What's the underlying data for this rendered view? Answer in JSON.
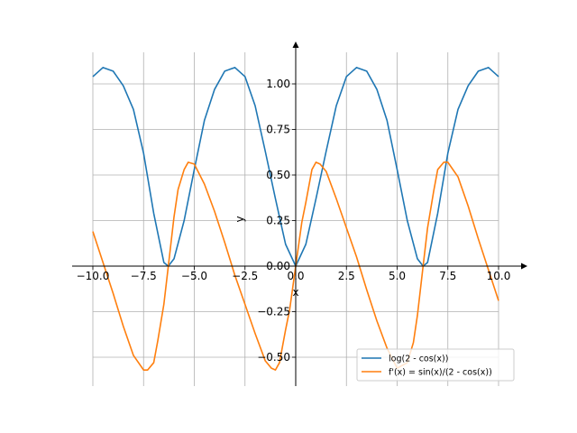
{
  "chart_data": {
    "type": "line",
    "xlabel": "x",
    "ylabel": "y",
    "xlim": [
      -10,
      10
    ],
    "ylim": [
      -0.6,
      1.1
    ],
    "grid": true,
    "legend_position": "lower-right",
    "x_ticks": [
      -10.0,
      -7.5,
      -5.0,
      -2.5,
      0.0,
      2.5,
      5.0,
      7.5,
      10.0
    ],
    "x_tick_labels": [
      "−10.0",
      "−7.5",
      "−5.0",
      "−2.5",
      "0.0",
      "2.5",
      "5.0",
      "7.5",
      "10.0"
    ],
    "y_ticks": [
      -0.5,
      -0.25,
      0.0,
      0.25,
      0.5,
      0.75,
      1.0
    ],
    "y_tick_labels": [
      "−0.50",
      "−0.25",
      "0.00",
      "0.25",
      "0.50",
      "0.75",
      "1.00"
    ],
    "series": [
      {
        "name": "log(2 - cos(x))",
        "color": "#1f77b4",
        "x": [
          -10,
          -9.5,
          -9,
          -8.5,
          -8,
          -7.5,
          -7,
          -6.5,
          -6.28,
          -6,
          -5.5,
          -5,
          -4.5,
          -4,
          -3.5,
          -3,
          -2.5,
          -2,
          -1.5,
          -1,
          -0.5,
          0,
          0.5,
          1,
          1.5,
          2,
          2.5,
          3,
          3.5,
          4,
          4.5,
          5,
          5.5,
          6,
          6.28,
          6.5,
          7,
          7.5,
          8,
          8.5,
          9,
          9.5,
          10
        ],
        "y": [
          1.04,
          1.09,
          1.07,
          0.99,
          0.86,
          0.62,
          0.29,
          0.02,
          0.0,
          0.04,
          0.25,
          0.53,
          0.8,
          0.97,
          1.07,
          1.09,
          1.04,
          0.88,
          0.63,
          0.37,
          0.12,
          0.0,
          0.12,
          0.37,
          0.63,
          0.88,
          1.04,
          1.09,
          1.07,
          0.97,
          0.8,
          0.53,
          0.25,
          0.04,
          0.0,
          0.02,
          0.29,
          0.62,
          0.86,
          0.99,
          1.07,
          1.09,
          1.04
        ]
      },
      {
        "name": "f'(x) = sin(x)/(2 - cos(x))",
        "color": "#ff7f0e",
        "x": [
          -10,
          -9.5,
          -9,
          -8.5,
          -8,
          -7.5,
          -7.3,
          -7,
          -6.8,
          -6.5,
          -6.28,
          -6,
          -5.8,
          -5.5,
          -5.3,
          -5,
          -4.5,
          -4,
          -3.5,
          -3,
          -2.5,
          -2,
          -1.5,
          -1.2,
          -1,
          -0.8,
          -0.5,
          -0.3,
          0,
          0.3,
          0.5,
          0.8,
          1,
          1.2,
          1.5,
          2,
          2.5,
          3,
          3.5,
          4,
          4.5,
          5,
          5.5,
          5.8,
          6,
          6.28,
          6.5,
          6.8,
          7,
          7.3,
          7.5,
          8,
          8.5,
          9,
          9.5,
          10
        ],
        "y": [
          0.19,
          0.02,
          -0.15,
          -0.33,
          -0.49,
          -0.57,
          -0.57,
          -0.53,
          -0.41,
          -0.21,
          0.0,
          0.27,
          0.42,
          0.53,
          0.57,
          0.56,
          0.45,
          0.3,
          0.13,
          -0.05,
          -0.21,
          -0.37,
          -0.52,
          -0.56,
          -0.57,
          -0.53,
          -0.35,
          -0.24,
          0.0,
          0.24,
          0.35,
          0.53,
          0.57,
          0.56,
          0.52,
          0.37,
          0.21,
          0.05,
          -0.13,
          -0.3,
          -0.45,
          -0.56,
          -0.53,
          -0.42,
          -0.27,
          0.0,
          0.21,
          0.41,
          0.53,
          0.57,
          0.57,
          0.49,
          0.33,
          0.15,
          -0.02,
          -0.19
        ]
      }
    ]
  }
}
